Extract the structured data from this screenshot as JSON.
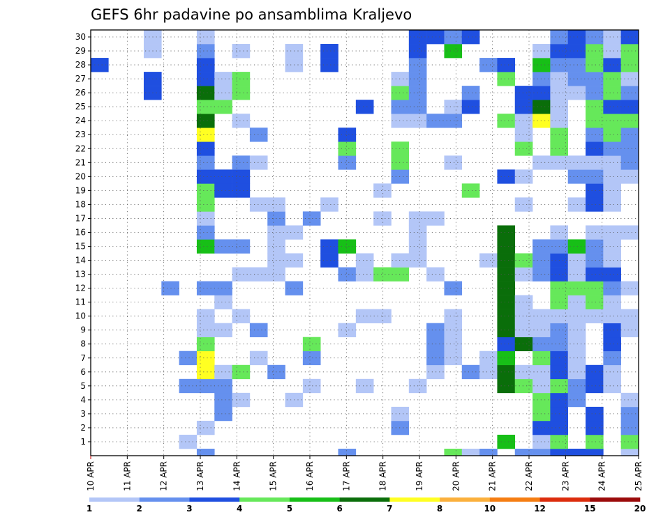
{
  "chart_data": {
    "type": "heatmap",
    "title": "GEFS 6hr padavine po ansamblima Kraljevo",
    "x_tick_labels": [
      "10 APR",
      "11 APR",
      "12 APR",
      "13 APR",
      "14 APR",
      "15 APR",
      "16 APR",
      "17 APR",
      "18 APR",
      "19 APR",
      "20 APR",
      "21 APR",
      "22 APR",
      "23 APR",
      "24 APR",
      "25 APR"
    ],
    "y_tick_labels": [
      "1",
      "2",
      "3",
      "4",
      "5",
      "6",
      "7",
      "8",
      "9",
      "10",
      "11",
      "12",
      "13",
      "14",
      "15",
      "16",
      "17",
      "18",
      "19",
      "20",
      "21",
      "22",
      "23",
      "24",
      "25",
      "26",
      "27",
      "28",
      "29",
      "30"
    ],
    "grid": true,
    "legend_placement": "bottom",
    "legend_thresholds": [
      "1",
      "2",
      "3",
      "4",
      "5",
      "6",
      "7",
      "8",
      "10",
      "12",
      "15",
      "20"
    ],
    "legend_colors": [
      "#b3c6f7",
      "#6590ee",
      "#1f4fe0",
      "#66e85a",
      "#17bf17",
      "#0a6e0a",
      "#ffff22",
      "#fbb03c",
      "#f57d12",
      "#dc2c0c",
      "#9b0a0a"
    ],
    "cells": [
      [
        0,
        28,
        3
      ],
      [
        3,
        26,
        3
      ],
      [
        3,
        27,
        3
      ],
      [
        3,
        29,
        1
      ],
      [
        3,
        30,
        1
      ],
      [
        4,
        12,
        2
      ],
      [
        5,
        1,
        1
      ],
      [
        5,
        5,
        2
      ],
      [
        5,
        7,
        2
      ],
      [
        6,
        0,
        2
      ],
      [
        6,
        2,
        1
      ],
      [
        6,
        5,
        2
      ],
      [
        6,
        6,
        7
      ],
      [
        6,
        7,
        7
      ],
      [
        6,
        8,
        4
      ],
      [
        6,
        9,
        1
      ],
      [
        6,
        10,
        1
      ],
      [
        6,
        12,
        2
      ],
      [
        6,
        15,
        5
      ],
      [
        6,
        16,
        2
      ],
      [
        6,
        17,
        1
      ],
      [
        6,
        18,
        4
      ],
      [
        6,
        19,
        4
      ],
      [
        6,
        20,
        3
      ],
      [
        6,
        21,
        2
      ],
      [
        6,
        22,
        3
      ],
      [
        6,
        23,
        7
      ],
      [
        6,
        24,
        6
      ],
      [
        6,
        25,
        4
      ],
      [
        6,
        26,
        6
      ],
      [
        6,
        27,
        3
      ],
      [
        6,
        28,
        3
      ],
      [
        6,
        29,
        2
      ],
      [
        6,
        30,
        1
      ],
      [
        7,
        3,
        2
      ],
      [
        7,
        4,
        2
      ],
      [
        7,
        5,
        2
      ],
      [
        7,
        6,
        1
      ],
      [
        7,
        9,
        1
      ],
      [
        7,
        11,
        1
      ],
      [
        7,
        12,
        2
      ],
      [
        7,
        15,
        2
      ],
      [
        7,
        19,
        3
      ],
      [
        7,
        20,
        3
      ],
      [
        7,
        25,
        4
      ],
      [
        7,
        26,
        1
      ],
      [
        7,
        27,
        1
      ],
      [
        8,
        4,
        1
      ],
      [
        8,
        6,
        4
      ],
      [
        8,
        10,
        1
      ],
      [
        8,
        13,
        1
      ],
      [
        8,
        15,
        2
      ],
      [
        8,
        19,
        3
      ],
      [
        8,
        20,
        3
      ],
      [
        8,
        21,
        2
      ],
      [
        8,
        24,
        1
      ],
      [
        8,
        26,
        4
      ],
      [
        8,
        27,
        4
      ],
      [
        8,
        29,
        1
      ],
      [
        9,
        7,
        1
      ],
      [
        9,
        9,
        2
      ],
      [
        9,
        13,
        1
      ],
      [
        9,
        18,
        1
      ],
      [
        9,
        21,
        1
      ],
      [
        9,
        23,
        2
      ],
      [
        10,
        6,
        2
      ],
      [
        10,
        13,
        1
      ],
      [
        10,
        14,
        1
      ],
      [
        10,
        15,
        1
      ],
      [
        10,
        16,
        1
      ],
      [
        10,
        17,
        2
      ],
      [
        10,
        18,
        1
      ],
      [
        11,
        4,
        1
      ],
      [
        11,
        12,
        2
      ],
      [
        11,
        14,
        1
      ],
      [
        11,
        16,
        1
      ],
      [
        11,
        28,
        1
      ],
      [
        11,
        29,
        1
      ],
      [
        12,
        5,
        1
      ],
      [
        12,
        7,
        2
      ],
      [
        12,
        8,
        4
      ],
      [
        12,
        17,
        2
      ],
      [
        13,
        14,
        3
      ],
      [
        13,
        15,
        3
      ],
      [
        13,
        18,
        1
      ],
      [
        13,
        28,
        3
      ],
      [
        13,
        29,
        3
      ],
      [
        14,
        0,
        2
      ],
      [
        14,
        9,
        1
      ],
      [
        14,
        13,
        2
      ],
      [
        14,
        15,
        5
      ],
      [
        14,
        21,
        2
      ],
      [
        14,
        22,
        4
      ],
      [
        14,
        23,
        3
      ],
      [
        15,
        5,
        1
      ],
      [
        15,
        10,
        1
      ],
      [
        15,
        13,
        1
      ],
      [
        15,
        14,
        1
      ],
      [
        15,
        25,
        3
      ],
      [
        16,
        10,
        1
      ],
      [
        16,
        13,
        4
      ],
      [
        16,
        17,
        1
      ],
      [
        16,
        19,
        1
      ],
      [
        17,
        2,
        2
      ],
      [
        17,
        3,
        1
      ],
      [
        17,
        13,
        4
      ],
      [
        17,
        14,
        1
      ],
      [
        17,
        20,
        2
      ],
      [
        17,
        21,
        4
      ],
      [
        17,
        22,
        4
      ],
      [
        17,
        24,
        1
      ],
      [
        17,
        25,
        2
      ],
      [
        17,
        26,
        4
      ],
      [
        17,
        27,
        1
      ],
      [
        18,
        5,
        1
      ],
      [
        18,
        14,
        1
      ],
      [
        18,
        15,
        1
      ],
      [
        18,
        16,
        1
      ],
      [
        18,
        17,
        1
      ],
      [
        18,
        24,
        1
      ],
      [
        18,
        25,
        2
      ],
      [
        18,
        26,
        2
      ],
      [
        18,
        27,
        2
      ],
      [
        18,
        28,
        2
      ],
      [
        18,
        29,
        3
      ],
      [
        18,
        30,
        3
      ],
      [
        19,
        6,
        1
      ],
      [
        19,
        7,
        2
      ],
      [
        19,
        8,
        2
      ],
      [
        19,
        9,
        2
      ],
      [
        19,
        13,
        1
      ],
      [
        19,
        17,
        1
      ],
      [
        19,
        24,
        2
      ],
      [
        19,
        30,
        3
      ],
      [
        20,
        0,
        4
      ],
      [
        20,
        7,
        1
      ],
      [
        20,
        8,
        1
      ],
      [
        20,
        9,
        1
      ],
      [
        20,
        10,
        1
      ],
      [
        20,
        12,
        2
      ],
      [
        20,
        21,
        1
      ],
      [
        20,
        24,
        2
      ],
      [
        20,
        25,
        1
      ],
      [
        20,
        29,
        5
      ],
      [
        20,
        30,
        2
      ],
      [
        21,
        0,
        1
      ],
      [
        21,
        6,
        2
      ],
      [
        21,
        19,
        4
      ],
      [
        21,
        25,
        3
      ],
      [
        21,
        26,
        2
      ],
      [
        21,
        30,
        3
      ],
      [
        22,
        0,
        2
      ],
      [
        22,
        6,
        1
      ],
      [
        22,
        7,
        1
      ],
      [
        22,
        14,
        1
      ],
      [
        22,
        28,
        2
      ],
      [
        23,
        1,
        5
      ],
      [
        23,
        5,
        6
      ],
      [
        23,
        6,
        6
      ],
      [
        23,
        7,
        5
      ],
      [
        23,
        8,
        3
      ],
      [
        23,
        9,
        6
      ],
      [
        23,
        10,
        6
      ],
      [
        23,
        11,
        6
      ],
      [
        23,
        12,
        6
      ],
      [
        23,
        13,
        6
      ],
      [
        23,
        14,
        6
      ],
      [
        23,
        15,
        6
      ],
      [
        23,
        16,
        6
      ],
      [
        23,
        20,
        3
      ],
      [
        23,
        24,
        4
      ],
      [
        23,
        27,
        4
      ],
      [
        23,
        28,
        3
      ],
      [
        24,
        0,
        2
      ],
      [
        24,
        5,
        4
      ],
      [
        24,
        6,
        1
      ],
      [
        24,
        8,
        6
      ],
      [
        24,
        9,
        1
      ],
      [
        24,
        10,
        1
      ],
      [
        24,
        11,
        1
      ],
      [
        24,
        13,
        1
      ],
      [
        24,
        14,
        4
      ],
      [
        24,
        18,
        1
      ],
      [
        24,
        20,
        1
      ],
      [
        24,
        22,
        4
      ],
      [
        24,
        23,
        1
      ],
      [
        24,
        24,
        1
      ],
      [
        24,
        25,
        3
      ],
      [
        24,
        26,
        3
      ],
      [
        25,
        0,
        2
      ],
      [
        25,
        1,
        1
      ],
      [
        25,
        2,
        3
      ],
      [
        25,
        3,
        4
      ],
      [
        25,
        4,
        4
      ],
      [
        25,
        5,
        1
      ],
      [
        25,
        6,
        1
      ],
      [
        25,
        7,
        4
      ],
      [
        25,
        8,
        2
      ],
      [
        25,
        9,
        1
      ],
      [
        25,
        10,
        1
      ],
      [
        25,
        13,
        2
      ],
      [
        25,
        14,
        2
      ],
      [
        25,
        15,
        2
      ],
      [
        25,
        21,
        1
      ],
      [
        25,
        24,
        7
      ],
      [
        25,
        25,
        6
      ],
      [
        25,
        26,
        3
      ],
      [
        25,
        27,
        2
      ],
      [
        25,
        28,
        5
      ],
      [
        25,
        29,
        1
      ],
      [
        26,
        0,
        3
      ],
      [
        26,
        1,
        4
      ],
      [
        26,
        2,
        3
      ],
      [
        26,
        3,
        3
      ],
      [
        26,
        4,
        3
      ],
      [
        26,
        5,
        4
      ],
      [
        26,
        6,
        3
      ],
      [
        26,
        7,
        3
      ],
      [
        26,
        8,
        2
      ],
      [
        26,
        9,
        2
      ],
      [
        26,
        10,
        1
      ],
      [
        26,
        11,
        4
      ],
      [
        26,
        12,
        4
      ],
      [
        26,
        13,
        3
      ],
      [
        26,
        14,
        3
      ],
      [
        26,
        15,
        2
      ],
      [
        26,
        16,
        1
      ],
      [
        26,
        21,
        1
      ],
      [
        26,
        22,
        4
      ],
      [
        26,
        23,
        4
      ],
      [
        26,
        24,
        1
      ],
      [
        26,
        25,
        1
      ],
      [
        26,
        26,
        1
      ],
      [
        26,
        27,
        1
      ],
      [
        26,
        28,
        2
      ],
      [
        26,
        29,
        3
      ],
      [
        26,
        30,
        2
      ],
      [
        27,
        0,
        3
      ],
      [
        27,
        4,
        2
      ],
      [
        27,
        5,
        2
      ],
      [
        27,
        6,
        1
      ],
      [
        27,
        7,
        1
      ],
      [
        27,
        8,
        1
      ],
      [
        27,
        9,
        1
      ],
      [
        27,
        10,
        1
      ],
      [
        27,
        11,
        1
      ],
      [
        27,
        12,
        4
      ],
      [
        27,
        13,
        1
      ],
      [
        27,
        14,
        1
      ],
      [
        27,
        15,
        5
      ],
      [
        27,
        18,
        1
      ],
      [
        27,
        20,
        2
      ],
      [
        27,
        21,
        1
      ],
      [
        27,
        26,
        1
      ],
      [
        27,
        27,
        2
      ],
      [
        27,
        28,
        2
      ],
      [
        27,
        29,
        3
      ],
      [
        27,
        30,
        3
      ],
      [
        28,
        0,
        3
      ],
      [
        28,
        1,
        4
      ],
      [
        28,
        2,
        3
      ],
      [
        28,
        3,
        3
      ],
      [
        28,
        5,
        3
      ],
      [
        28,
        6,
        3
      ],
      [
        28,
        10,
        1
      ],
      [
        28,
        11,
        4
      ],
      [
        28,
        12,
        4
      ],
      [
        28,
        13,
        3
      ],
      [
        28,
        14,
        2
      ],
      [
        28,
        15,
        2
      ],
      [
        28,
        16,
        1
      ],
      [
        28,
        18,
        3
      ],
      [
        28,
        19,
        3
      ],
      [
        28,
        20,
        2
      ],
      [
        28,
        21,
        1
      ],
      [
        28,
        22,
        3
      ],
      [
        28,
        23,
        2
      ],
      [
        28,
        24,
        4
      ],
      [
        28,
        25,
        4
      ],
      [
        28,
        26,
        2
      ],
      [
        28,
        27,
        2
      ],
      [
        28,
        28,
        4
      ],
      [
        28,
        29,
        4
      ],
      [
        28,
        30,
        2
      ],
      [
        29,
        5,
        1
      ],
      [
        29,
        6,
        1
      ],
      [
        29,
        7,
        2
      ],
      [
        29,
        8,
        3
      ],
      [
        29,
        9,
        3
      ],
      [
        29,
        10,
        1
      ],
      [
        29,
        11,
        1
      ],
      [
        29,
        12,
        2
      ],
      [
        29,
        13,
        3
      ],
      [
        29,
        14,
        1
      ],
      [
        29,
        15,
        1
      ],
      [
        29,
        16,
        1
      ],
      [
        29,
        18,
        1
      ],
      [
        29,
        19,
        1
      ],
      [
        29,
        20,
        1
      ],
      [
        29,
        21,
        1
      ],
      [
        29,
        22,
        2
      ],
      [
        29,
        23,
        4
      ],
      [
        29,
        24,
        4
      ],
      [
        29,
        25,
        3
      ],
      [
        29,
        26,
        4
      ],
      [
        29,
        27,
        4
      ],
      [
        29,
        28,
        3
      ],
      [
        29,
        29,
        1
      ],
      [
        29,
        30,
        1
      ],
      [
        30,
        0,
        1
      ],
      [
        30,
        1,
        4
      ],
      [
        30,
        2,
        2
      ],
      [
        30,
        3,
        2
      ],
      [
        30,
        4,
        1
      ],
      [
        30,
        9,
        1
      ],
      [
        30,
        10,
        1
      ],
      [
        30,
        12,
        1
      ],
      [
        30,
        16,
        1
      ],
      [
        30,
        20,
        1
      ],
      [
        30,
        21,
        2
      ],
      [
        30,
        22,
        2
      ],
      [
        30,
        23,
        2
      ],
      [
        30,
        24,
        4
      ],
      [
        30,
        25,
        3
      ],
      [
        30,
        26,
        2
      ],
      [
        30,
        27,
        1
      ],
      [
        30,
        28,
        4
      ],
      [
        30,
        29,
        4
      ],
      [
        30,
        30,
        3
      ]
    ]
  }
}
